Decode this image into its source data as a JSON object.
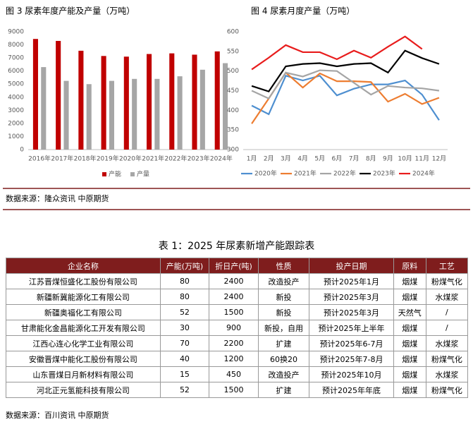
{
  "chart_data": [
    {
      "type": "bar",
      "title": "图 3 尿素年度产能及产量（万吨）",
      "categories": [
        "2016年",
        "2017年",
        "2018年",
        "2019年",
        "2020年",
        "2021年",
        "2022年",
        "2023年",
        "2024年"
      ],
      "series": [
        {
          "name": "产能",
          "color": "#c00000",
          "values": [
            8450,
            8300,
            7550,
            7150,
            7100,
            7300,
            7350,
            7250,
            7500
          ]
        },
        {
          "name": "产量",
          "color": "#a6a6a6",
          "values": [
            6300,
            5250,
            5000,
            5250,
            5400,
            5400,
            5600,
            6100,
            6600
          ]
        }
      ],
      "ylim": [
        0,
        9000
      ],
      "yticks": [
        0,
        1000,
        2000,
        3000,
        4000,
        5000,
        6000,
        7000,
        8000,
        9000
      ],
      "grid": false,
      "legend": "bottom"
    },
    {
      "type": "line",
      "title": "图 4 尿素月度产量（万吨）",
      "categories": [
        "1月",
        "2月",
        "3月",
        "4月",
        "5月",
        "6月",
        "7月",
        "8月",
        "9月",
        "10月",
        "11月",
        "12月"
      ],
      "series": [
        {
          "name": "2020年",
          "color": "#4e8fd0",
          "values": [
            412,
            390,
            488,
            476,
            488,
            438,
            455,
            466,
            466,
            476,
            440,
            375
          ]
        },
        {
          "name": "2021年",
          "color": "#ed7d31",
          "values": [
            366,
            430,
            496,
            458,
            494,
            474,
            474,
            472,
            422,
            442,
            416,
            432
          ]
        },
        {
          "name": "2022年",
          "color": "#a5a5a5",
          "values": [
            450,
            430,
            496,
            486,
            502,
            500,
            470,
            440,
            462,
            458,
            456,
            450
          ]
        },
        {
          "name": "2023年",
          "color": "#000000",
          "values": [
            462,
            448,
            512,
            518,
            520,
            512,
            518,
            520,
            496,
            552,
            533,
            518
          ]
        },
        {
          "name": "2024年",
          "color": "#e81c1c",
          "values": [
            504,
            534,
            566,
            548,
            548,
            530,
            552,
            534,
            562,
            588,
            556,
            null
          ]
        }
      ],
      "ylim": [
        300,
        600
      ],
      "yticks": [
        300,
        350,
        400,
        450,
        500,
        550,
        600
      ],
      "grid": false,
      "legend": "bottom"
    }
  ],
  "source1": "数据来源：隆众资讯 中原期货",
  "table": {
    "title": "表 1：2025 年尿素新增产能跟踪表",
    "header": [
      "企业名称",
      "产能(万吨)",
      "折日产(吨)",
      "性质",
      "投产日期",
      "原料",
      "工艺"
    ],
    "rows": [
      [
        "江苏晋煤恒盛化工股份有限公司",
        "80",
        "2400",
        "改造投产",
        "预计2025年1月",
        "烟煤",
        "粉煤气化"
      ],
      [
        "新疆新冀能源化工有限公司",
        "80",
        "2400",
        "新投",
        "预计2025年3月",
        "烟煤",
        "水煤浆"
      ],
      [
        "新疆奥福化工有限公司",
        "52",
        "1500",
        "新投",
        "预计2025年3月",
        "天然气",
        "/"
      ],
      [
        "甘肃能化金昌能源化工开发有限公司",
        "30",
        "900",
        "新投，自用",
        "预计2025年上半年",
        "烟煤",
        "/"
      ],
      [
        "江西心连心化学工业有限公司",
        "70",
        "2200",
        "扩建",
        "预计2025年6-7月",
        "烟煤",
        "水煤浆"
      ],
      [
        "安徽晋煤中能化工股份有限公司",
        "40",
        "1200",
        "60换20",
        "预计2025年7-8月",
        "烟煤",
        "粉煤气化"
      ],
      [
        "山东晋煤日月新材料有限公司",
        "15",
        "450",
        "改造投产",
        "预计2025年10月",
        "烟煤",
        "水煤浆"
      ],
      [
        "河北正元氢能科技有限公司",
        "52",
        "1500",
        "扩建",
        "预计2025年年底",
        "烟煤",
        "粉煤气化"
      ]
    ]
  },
  "source2": "数据来源：百川资讯 中原期货"
}
